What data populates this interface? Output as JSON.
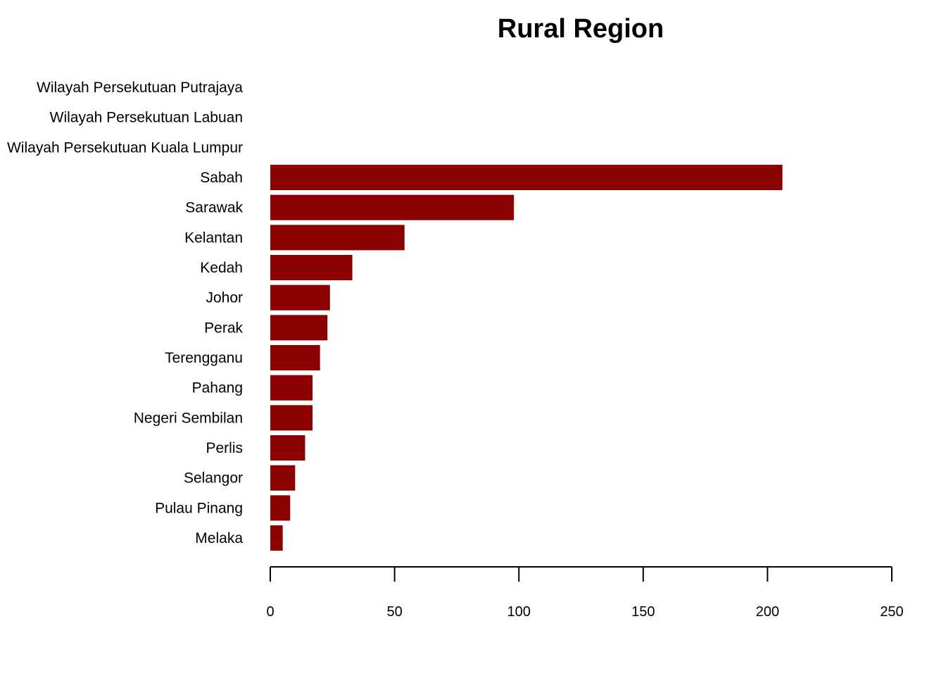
{
  "chart_data": {
    "type": "bar",
    "orientation": "horizontal",
    "title": "Rural Region",
    "xlabel": "",
    "ylabel": "",
    "xlim": [
      0,
      250
    ],
    "x_ticks": [
      0,
      50,
      100,
      150,
      200,
      250
    ],
    "grid": false,
    "legend": "none",
    "bar_color": "#8B0000",
    "categories": [
      "Wilayah Persekutuan Putrajaya",
      "Wilayah Persekutuan Labuan",
      "Wilayah Persekutuan Kuala Lumpur",
      "Sabah",
      "Sarawak",
      "Kelantan",
      "Kedah",
      "Johor",
      "Perak",
      "Terengganu",
      "Pahang",
      "Negeri Sembilan",
      "Perlis",
      "Selangor",
      "Pulau Pinang",
      "Melaka"
    ],
    "values": [
      0,
      0,
      0,
      206,
      98,
      54,
      33,
      24,
      23,
      20,
      17,
      17,
      14,
      10,
      8,
      5
    ]
  }
}
